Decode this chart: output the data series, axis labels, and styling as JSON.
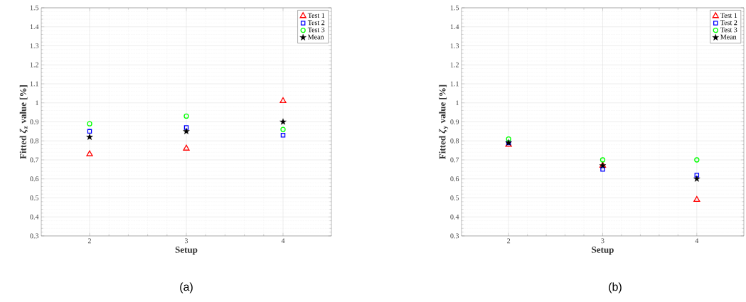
{
  "chart_data": [
    {
      "type": "scatter",
      "xlabel": "Setup",
      "ylabel": "Fitted *ζ*$_{z}$ value [%]",
      "x": [
        2,
        3,
        4
      ],
      "xlim": [
        1.5,
        4.5
      ],
      "ylim": [
        0.3,
        1.5
      ],
      "xticks": [
        2,
        3,
        4
      ],
      "yticks": [
        0.3,
        0.4,
        0.5,
        0.6,
        0.7,
        0.8,
        0.9,
        1,
        1.1,
        1.2,
        1.3,
        1.4,
        1.5
      ],
      "grid": true,
      "legend": "top right",
      "annotations": [
        "(a)"
      ],
      "series": [
        {
          "name": "Test 1",
          "color": "#ff0000",
          "marker": "triangle",
          "values": [
            0.73,
            0.76,
            1.01
          ]
        },
        {
          "name": "Test 2",
          "color": "#0000ff",
          "marker": "square",
          "values": [
            0.85,
            0.87,
            0.83
          ]
        },
        {
          "name": "Test 3",
          "color": "#00ff00",
          "marker": "circle",
          "values": [
            0.89,
            0.93,
            0.86
          ]
        },
        {
          "name": "Mean",
          "color": "#000000",
          "marker": "star",
          "values": [
            0.82,
            0.85,
            0.9
          ]
        }
      ]
    },
    {
      "type": "scatter",
      "xlabel": "Setup",
      "ylabel": "Fitted *ζ*$_{y}$ value [%]",
      "x": [
        2,
        3,
        4
      ],
      "xlim": [
        1.5,
        4.5
      ],
      "ylim": [
        0.3,
        1.5
      ],
      "xticks": [
        2,
        3,
        4
      ],
      "yticks": [
        0.3,
        0.4,
        0.5,
        0.6,
        0.7,
        0.8,
        0.9,
        1,
        1.1,
        1.2,
        1.3,
        1.4,
        1.5
      ],
      "grid": true,
      "legend": "top right",
      "annotations": [
        "(b)"
      ],
      "series": [
        {
          "name": "Test 1",
          "color": "#ff0000",
          "marker": "triangle",
          "values": [
            0.78,
            0.67,
            0.49
          ]
        },
        {
          "name": "Test 2",
          "color": "#0000ff",
          "marker": "square",
          "values": [
            0.79,
            0.65,
            0.62
          ]
        },
        {
          "name": "Test 3",
          "color": "#00ff00",
          "marker": "circle",
          "values": [
            0.81,
            0.7,
            0.7
          ]
        },
        {
          "name": "Mean",
          "color": "#000000",
          "marker": "star",
          "values": [
            0.79,
            0.67,
            0.6
          ]
        }
      ]
    }
  ]
}
